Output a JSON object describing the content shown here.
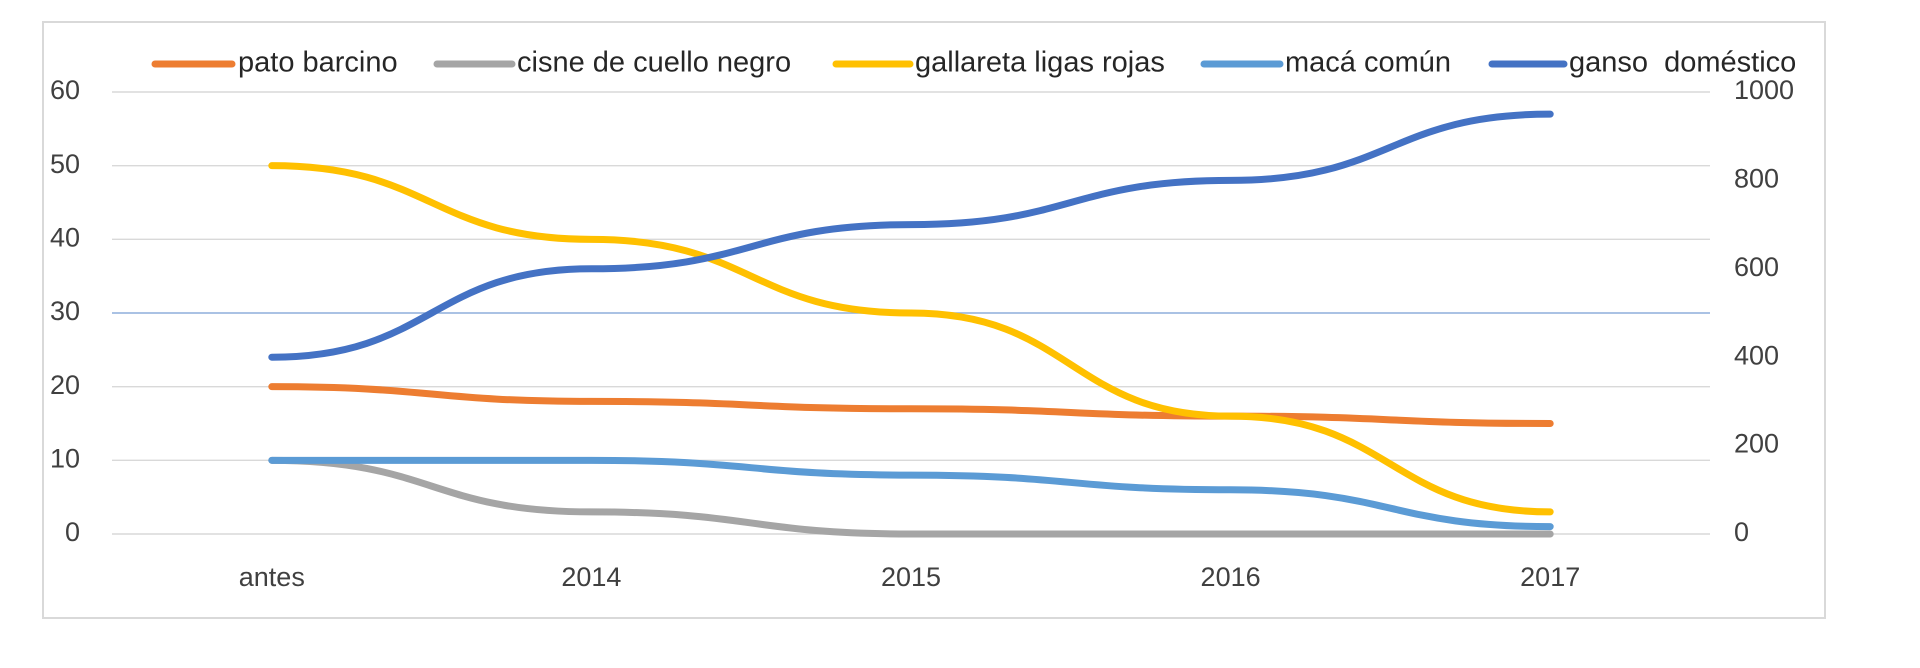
{
  "chart_data": {
    "type": "line",
    "title": "",
    "xlabel": "",
    "ylabel": "",
    "categories": [
      "antes",
      "2014",
      "2015",
      "2016",
      "2017"
    ],
    "y_left": {
      "range": [
        0,
        60
      ],
      "ticks": [
        "0",
        "10",
        "20",
        "30",
        "40",
        "50",
        "60"
      ]
    },
    "y_right": {
      "range": [
        0,
        1000
      ],
      "ticks": [
        "0",
        "200",
        "400",
        "600",
        "800",
        "1000"
      ]
    },
    "grid": "horizontal",
    "legend_position": "top",
    "series": [
      {
        "name": "pato barcino",
        "color": "#ED7D31",
        "axis": "left",
        "values": [
          20,
          18,
          17,
          16,
          15
        ]
      },
      {
        "name": "cisne de cuello negro",
        "color": "#A5A5A5",
        "axis": "left",
        "values": [
          10,
          3,
          0,
          0,
          0
        ]
      },
      {
        "name": "gallareta ligas rojas",
        "color": "#FFC000",
        "axis": "left",
        "values": [
          50,
          40,
          30,
          16,
          3
        ]
      },
      {
        "name": "macá común",
        "color": "#5B9BD5",
        "axis": "left",
        "values": [
          10,
          10,
          8,
          6,
          1
        ]
      },
      {
        "name": "ganso  doméstico",
        "color": "#4472C4",
        "axis": "right",
        "values": [
          400,
          600,
          700,
          800,
          950
        ]
      }
    ]
  }
}
